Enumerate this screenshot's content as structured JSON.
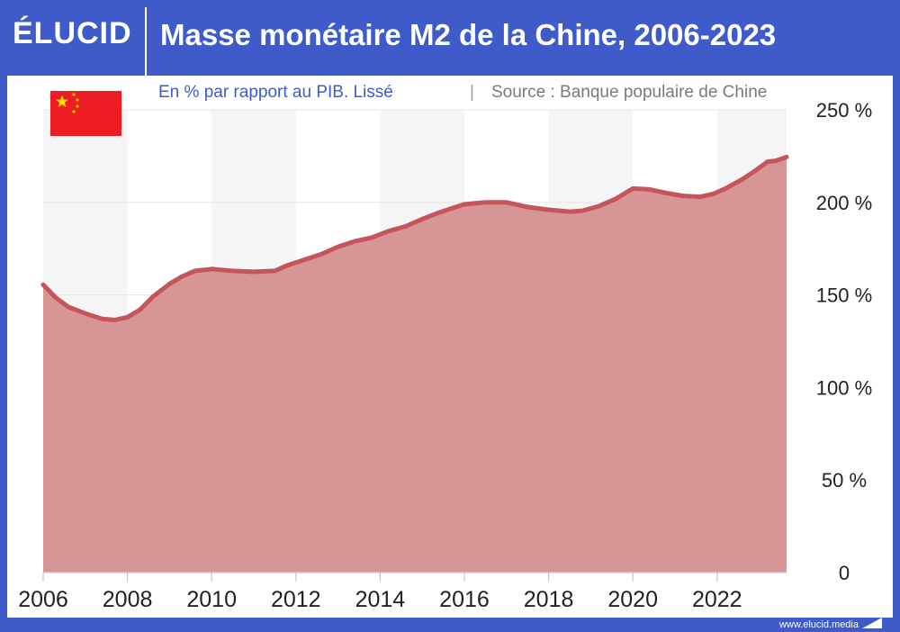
{
  "header": {
    "logo": "ÉLUCID",
    "title": "Masse monétaire M2 de la Chine, 2006-2023"
  },
  "subtitle": {
    "description": "En % par rapport au PIB. Lissé",
    "separator": "|",
    "source": "Source : Banque populaire de Chine"
  },
  "footer": {
    "url": "www.elucid.media"
  },
  "flag": {
    "country": "china-flag",
    "color": "#ee1c25",
    "star_color": "#ffde00"
  },
  "colors": {
    "brand": "#3e5bc9",
    "area": "#d79595",
    "line": "#c4555a",
    "band": "#f5f5f5"
  },
  "chart_data": {
    "type": "area",
    "title": "Masse monétaire M2 de la Chine, 2006-2023",
    "xlabel": "",
    "ylabel": "",
    "xlim": [
      2006,
      2023.65
    ],
    "ylim": [
      0,
      250
    ],
    "x_ticks": [
      2006,
      2008,
      2010,
      2012,
      2014,
      2016,
      2018,
      2020,
      2022
    ],
    "y_ticks": [
      0,
      50,
      100,
      150,
      200,
      250
    ],
    "y_tick_labels": [
      "0",
      "50 %",
      "100 %",
      "150 %",
      "200 %",
      "250 %"
    ],
    "y_axis_side": "right",
    "grid": "horizontal",
    "series": [
      {
        "name": "",
        "x": [
          2006.0,
          2006.3,
          2006.6,
          2007.0,
          2007.4,
          2007.7,
          2008.0,
          2008.3,
          2008.6,
          2009.0,
          2009.3,
          2009.6,
          2010.0,
          2010.5,
          2011.0,
          2011.5,
          2011.8,
          2012.2,
          2012.6,
          2013.0,
          2013.4,
          2013.8,
          2014.2,
          2014.6,
          2015.0,
          2015.4,
          2015.8,
          2016.0,
          2016.5,
          2017.0,
          2017.5,
          2018.0,
          2018.5,
          2018.8,
          2019.2,
          2019.6,
          2020.0,
          2020.4,
          2020.8,
          2021.2,
          2021.6,
          2021.9,
          2022.2,
          2022.6,
          2022.9,
          2023.2,
          2023.4,
          2023.65
        ],
        "values": [
          155.5,
          148.5,
          143.5,
          140.0,
          137.0,
          136.5,
          138.0,
          142.0,
          149.0,
          156.0,
          160.0,
          163.0,
          164.0,
          163.0,
          162.5,
          163.0,
          166.0,
          169.0,
          172.0,
          176.0,
          179.0,
          181.0,
          184.5,
          187.0,
          191.0,
          194.5,
          197.5,
          199.0,
          200.0,
          200.0,
          197.5,
          196.0,
          195.0,
          195.5,
          198.0,
          202.0,
          207.5,
          207.0,
          205.0,
          203.5,
          203.0,
          204.5,
          207.5,
          212.5,
          217.0,
          222.0,
          222.5,
          224.5
        ]
      }
    ]
  }
}
